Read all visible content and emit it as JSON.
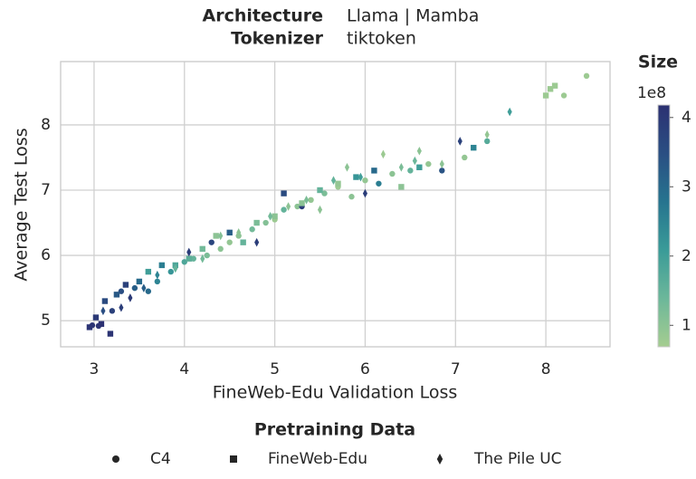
{
  "chart_data": {
    "type": "scatter",
    "header": [
      {
        "label": "Architecture",
        "value": "Llama  |  Mamba"
      },
      {
        "label": "Tokenizer",
        "value": "tiktoken"
      }
    ],
    "xlabel": "FineWeb-Edu Validation Loss",
    "ylabel": "Average Test Loss",
    "xlim": [
      2.63,
      8.71
    ],
    "xticks": [
      3,
      4,
      5,
      6,
      7,
      8
    ],
    "ylim": [
      4.6,
      8.97
    ],
    "yticks": [
      5,
      6,
      7,
      8
    ],
    "grid": true,
    "colorbar": {
      "title": "Size",
      "offset_label": "1e8",
      "lim": [
        0.69,
        4.18
      ],
      "ticks": [
        1,
        2,
        3,
        4
      ],
      "colormap": [
        "#a5cd90",
        "#6cb79a",
        "#3a9b98",
        "#26748f",
        "#2a4f83",
        "#2c3172"
      ]
    },
    "legend": {
      "title": "Pretraining Data",
      "loc": "lower center"
    },
    "series": [
      {
        "name": "C4",
        "marker": "circle",
        "x": [
          2.98,
          3.05,
          3.3,
          3.45,
          3.6,
          3.7,
          3.85,
          4.0,
          4.1,
          4.25,
          4.4,
          4.5,
          4.6,
          4.75,
          4.9,
          5.0,
          5.1,
          5.25,
          5.4,
          5.55,
          5.7,
          5.85,
          6.0,
          6.15,
          6.3,
          6.5,
          6.7,
          6.85,
          7.1,
          7.35,
          8.2,
          8.45,
          5.3,
          4.3,
          3.2
        ],
        "values": [
          4.93,
          4.92,
          5.45,
          5.5,
          5.45,
          5.6,
          5.75,
          5.9,
          5.95,
          6.0,
          6.1,
          6.2,
          6.3,
          6.4,
          6.5,
          6.55,
          6.7,
          6.75,
          6.85,
          6.95,
          7.05,
          6.9,
          7.15,
          7.1,
          7.25,
          7.3,
          7.4,
          7.3,
          7.5,
          7.75,
          8.45,
          8.75,
          6.75,
          6.2,
          5.15
        ],
        "sizes": [
          4.1,
          4.1,
          3.5,
          3.2,
          3.0,
          2.5,
          2.2,
          1.8,
          1.5,
          1.2,
          1.0,
          0.9,
          1.0,
          1.3,
          1.1,
          0.8,
          1.5,
          1.0,
          0.9,
          1.2,
          0.8,
          1.0,
          0.9,
          2.6,
          1.0,
          1.5,
          0.9,
          3.4,
          0.9,
          1.7,
          0.8,
          0.8,
          3.9,
          3.7,
          3.8
        ]
      },
      {
        "name": "FineWeb-Edu",
        "marker": "square",
        "x": [
          2.95,
          3.02,
          3.08,
          3.18,
          3.12,
          3.25,
          3.35,
          3.5,
          3.6,
          3.75,
          3.9,
          4.05,
          4.2,
          4.35,
          4.5,
          4.65,
          4.8,
          5.0,
          5.1,
          5.3,
          5.5,
          5.7,
          5.9,
          6.1,
          6.4,
          6.6,
          7.2,
          8.05,
          8.0,
          8.1
        ],
        "values": [
          4.9,
          5.05,
          4.95,
          4.8,
          5.3,
          5.4,
          5.55,
          5.6,
          5.75,
          5.85,
          5.85,
          5.95,
          6.1,
          6.3,
          6.35,
          6.2,
          6.5,
          6.6,
          6.95,
          6.8,
          7.0,
          7.1,
          7.2,
          7.3,
          7.05,
          7.35,
          7.65,
          8.55,
          8.45,
          8.6
        ],
        "sizes": [
          4.1,
          4.0,
          4.2,
          4.1,
          3.6,
          3.3,
          3.8,
          3.0,
          2.0,
          2.6,
          1.8,
          1.6,
          1.3,
          1.0,
          3.2,
          1.5,
          1.2,
          1.0,
          3.6,
          1.0,
          1.5,
          0.9,
          2.2,
          3.0,
          1.0,
          2.0,
          2.5,
          0.8,
          0.8,
          0.8
        ]
      },
      {
        "name": "The Pile UC",
        "marker": "diamond",
        "x": [
          3.1,
          3.3,
          3.4,
          3.55,
          3.7,
          3.9,
          4.05,
          4.2,
          4.4,
          4.6,
          4.8,
          4.95,
          5.15,
          5.35,
          5.5,
          5.65,
          5.8,
          5.95,
          6.0,
          6.2,
          6.4,
          6.6,
          6.85,
          7.05,
          7.35,
          7.6,
          6.55
        ],
        "values": [
          5.15,
          5.2,
          5.35,
          5.5,
          5.7,
          5.8,
          6.05,
          5.95,
          6.3,
          6.35,
          6.2,
          6.6,
          6.75,
          6.85,
          6.7,
          7.15,
          7.35,
          7.2,
          6.95,
          7.55,
          7.35,
          7.6,
          7.4,
          7.75,
          7.85,
          8.2,
          7.45
        ],
        "sizes": [
          3.5,
          3.9,
          4.0,
          3.2,
          2.5,
          1.5,
          3.9,
          1.3,
          1.1,
          1.0,
          3.9,
          1.3,
          1.0,
          1.2,
          1.0,
          1.5,
          1.0,
          2.0,
          3.9,
          0.8,
          1.2,
          1.0,
          1.0,
          3.8,
          0.9,
          2.0,
          1.4
        ]
      }
    ]
  }
}
